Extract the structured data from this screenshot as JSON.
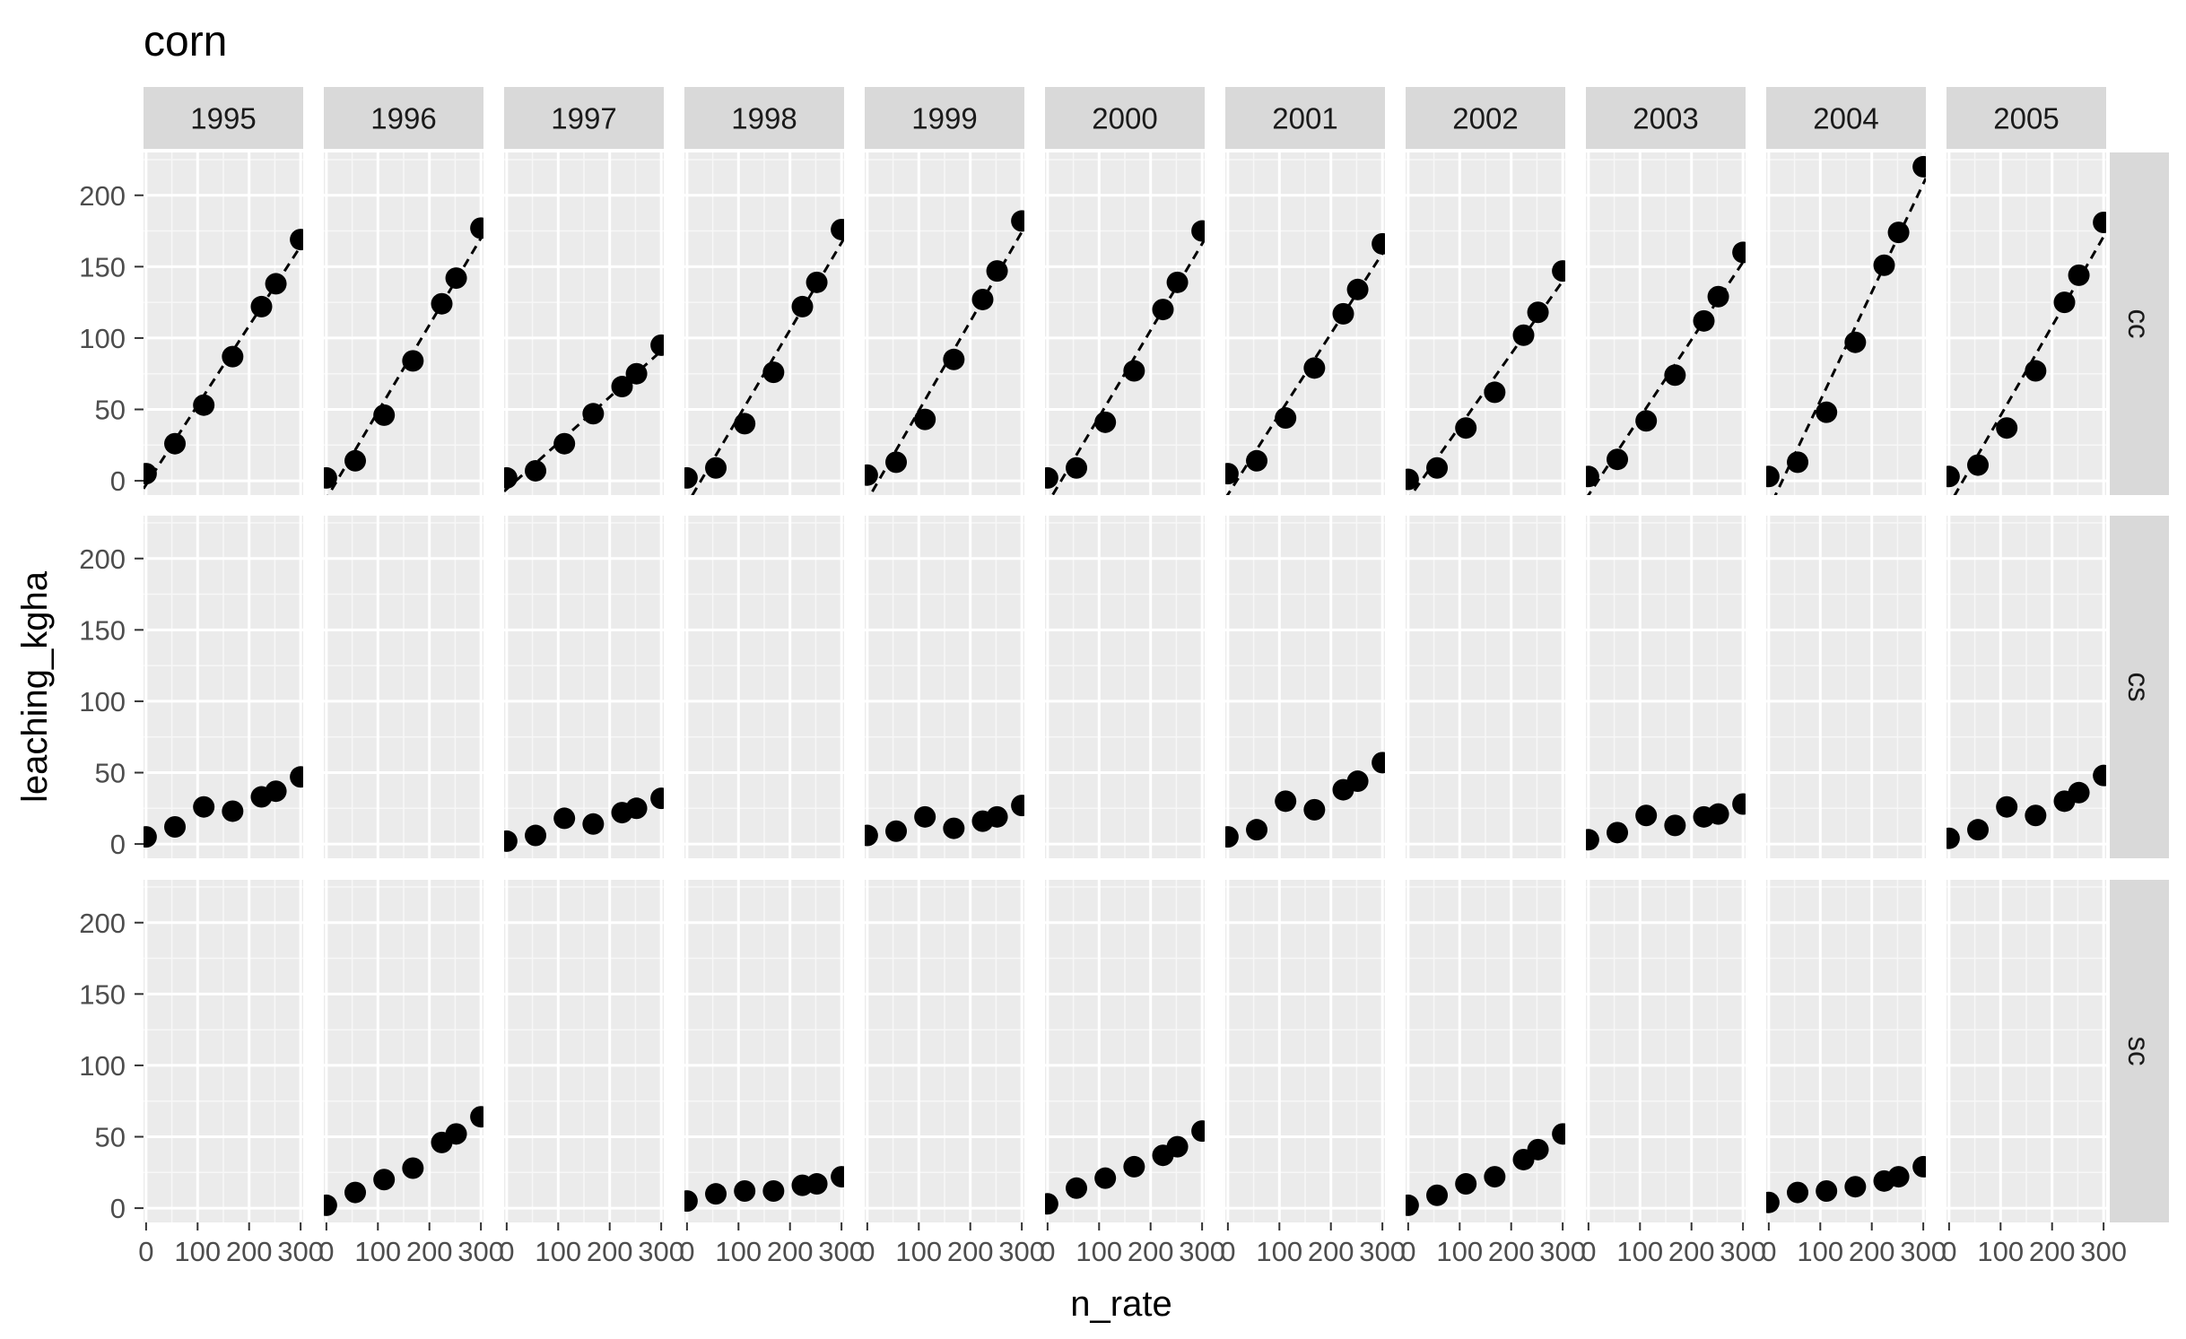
{
  "chart_data": {
    "type": "scatter",
    "title": "corn",
    "xlabel": "n_rate",
    "ylabel": "leaching_kgha",
    "xlim": [
      -5,
      305
    ],
    "ylim": [
      -10,
      230
    ],
    "x_ticks": [
      0,
      100,
      200,
      300
    ],
    "x_tick_labels": [
      "0",
      "100",
      "200",
      "300"
    ],
    "y_ticks": [
      0,
      50,
      100,
      150,
      200
    ],
    "y_tick_labels": [
      "0",
      "50",
      "100",
      "150",
      "200"
    ],
    "grid": true,
    "column_facet_labels": [
      "1995",
      "1996",
      "1997",
      "1998",
      "1999",
      "2000",
      "2001",
      "2002",
      "2003",
      "2004",
      "2005"
    ],
    "row_facet_labels": [
      "cc",
      "cs",
      "sc"
    ],
    "x": [
      0,
      56,
      112,
      168,
      224,
      252,
      300
    ],
    "fitted_line_style": "dashed",
    "panels": {
      "cc": {
        "1995": [
          5,
          26,
          53,
          87,
          122,
          138,
          169
        ],
        "1996": [
          2,
          14,
          46,
          84,
          124,
          142,
          177
        ],
        "1997": [
          2,
          7,
          26,
          47,
          66,
          75,
          95
        ],
        "1998": [
          2,
          9,
          40,
          76,
          122,
          139,
          176
        ],
        "1999": [
          4,
          13,
          43,
          85,
          127,
          147,
          182
        ],
        "2000": [
          2,
          9,
          41,
          77,
          120,
          139,
          175
        ],
        "2001": [
          5,
          14,
          44,
          79,
          117,
          134,
          166
        ],
        "2002": [
          1,
          9,
          37,
          62,
          102,
          118,
          147
        ],
        "2003": [
          3,
          15,
          42,
          74,
          112,
          129,
          160
        ],
        "2004": [
          3,
          13,
          48,
          97,
          151,
          174,
          220
        ],
        "2005": [
          3,
          11,
          37,
          77,
          125,
          144,
          181
        ]
      },
      "cs": {
        "1995": [
          5,
          12,
          26,
          23,
          33,
          37,
          47
        ],
        "1997": [
          2,
          6,
          18,
          14,
          22,
          25,
          32
        ],
        "1999": [
          6,
          9,
          19,
          11,
          16,
          19,
          27
        ],
        "2001": [
          5,
          10,
          30,
          24,
          38,
          44,
          57
        ],
        "2003": [
          3,
          8,
          20,
          13,
          19,
          21,
          28
        ],
        "2005": [
          4,
          10,
          26,
          20,
          30,
          36,
          48
        ]
      },
      "sc": {
        "1996": [
          2,
          11,
          20,
          28,
          46,
          52,
          64
        ],
        "1998": [
          5,
          10,
          12,
          12,
          16,
          17,
          22
        ],
        "2000": [
          3,
          14,
          21,
          29,
          37,
          43,
          54
        ],
        "2002": [
          2,
          9,
          17,
          22,
          34,
          41,
          52
        ],
        "2004": [
          4,
          11,
          12,
          15,
          19,
          22,
          29
        ]
      }
    }
  }
}
